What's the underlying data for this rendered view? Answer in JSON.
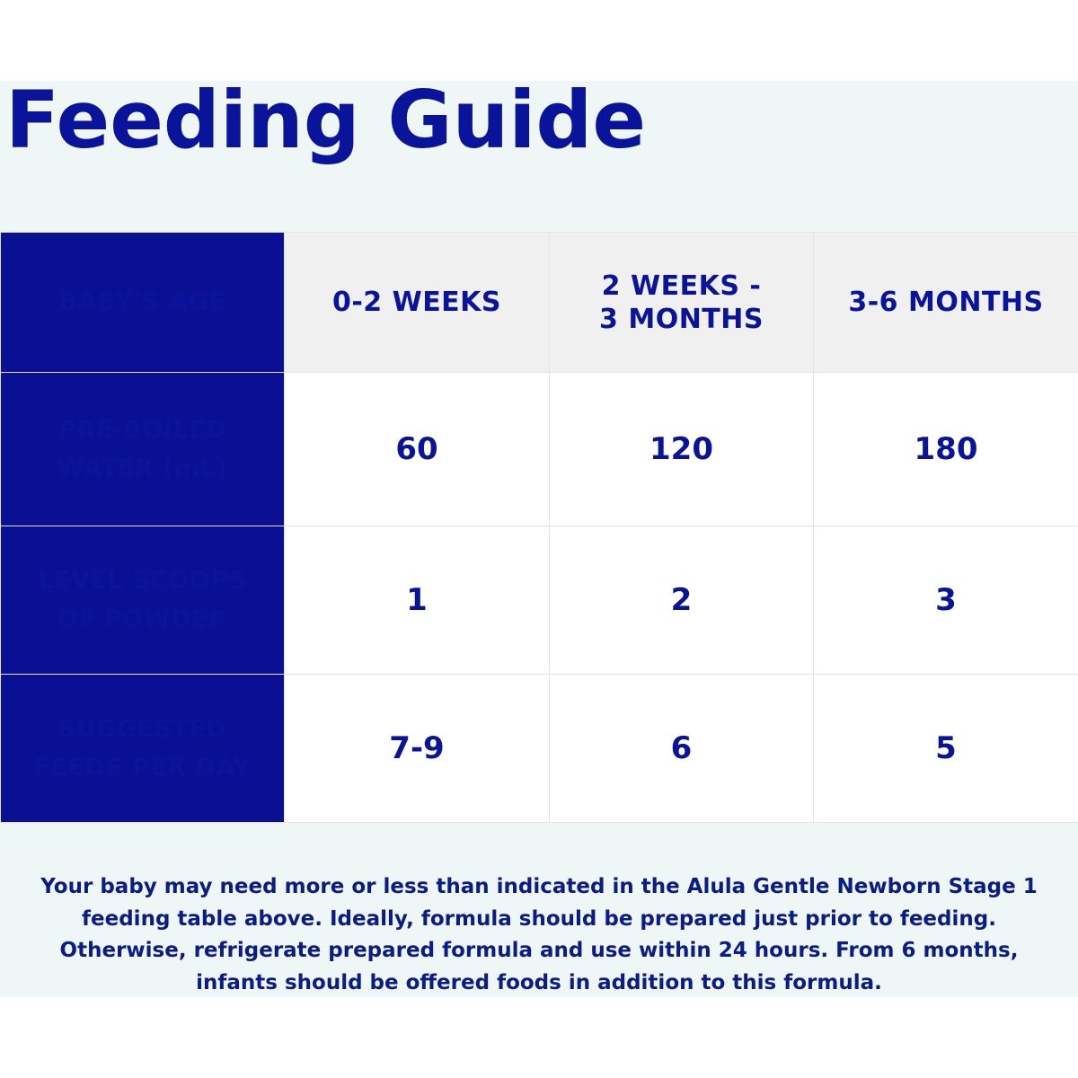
{
  "title": "Feeding Guide",
  "table": {
    "header": {
      "label": "BABY’S AGE",
      "ages": [
        "0-2 WEEKS",
        "2 WEEKS - 3 MONTHS",
        "3-6 MONTHS"
      ]
    },
    "rows": [
      {
        "label": "PRE-BOILED WATER (mL)",
        "values": [
          "60",
          "120",
          "180"
        ]
      },
      {
        "label": "LEVEL SCOOPS OF POWDER",
        "values": [
          "1",
          "2",
          "3"
        ]
      },
      {
        "label": "SUGGESTED FEEDS PER DAY",
        "values": [
          "7-9",
          "6",
          "5"
        ]
      }
    ]
  },
  "note": "Your baby may need more or less than indicated in the Alula Gentle Newborn Stage 1 feeding table above. Ideally, formula should be prepared just prior to feeding. Otherwise, refrigerate prepared formula and use within 24 hours. From 6 months, infants should be offered foods in addition to this formula.",
  "colors": {
    "brand_blue": "#0a0f93",
    "title_blue": "#0a149a",
    "panel_background": "#eff6f6",
    "header_background": "#f0f0f0"
  }
}
